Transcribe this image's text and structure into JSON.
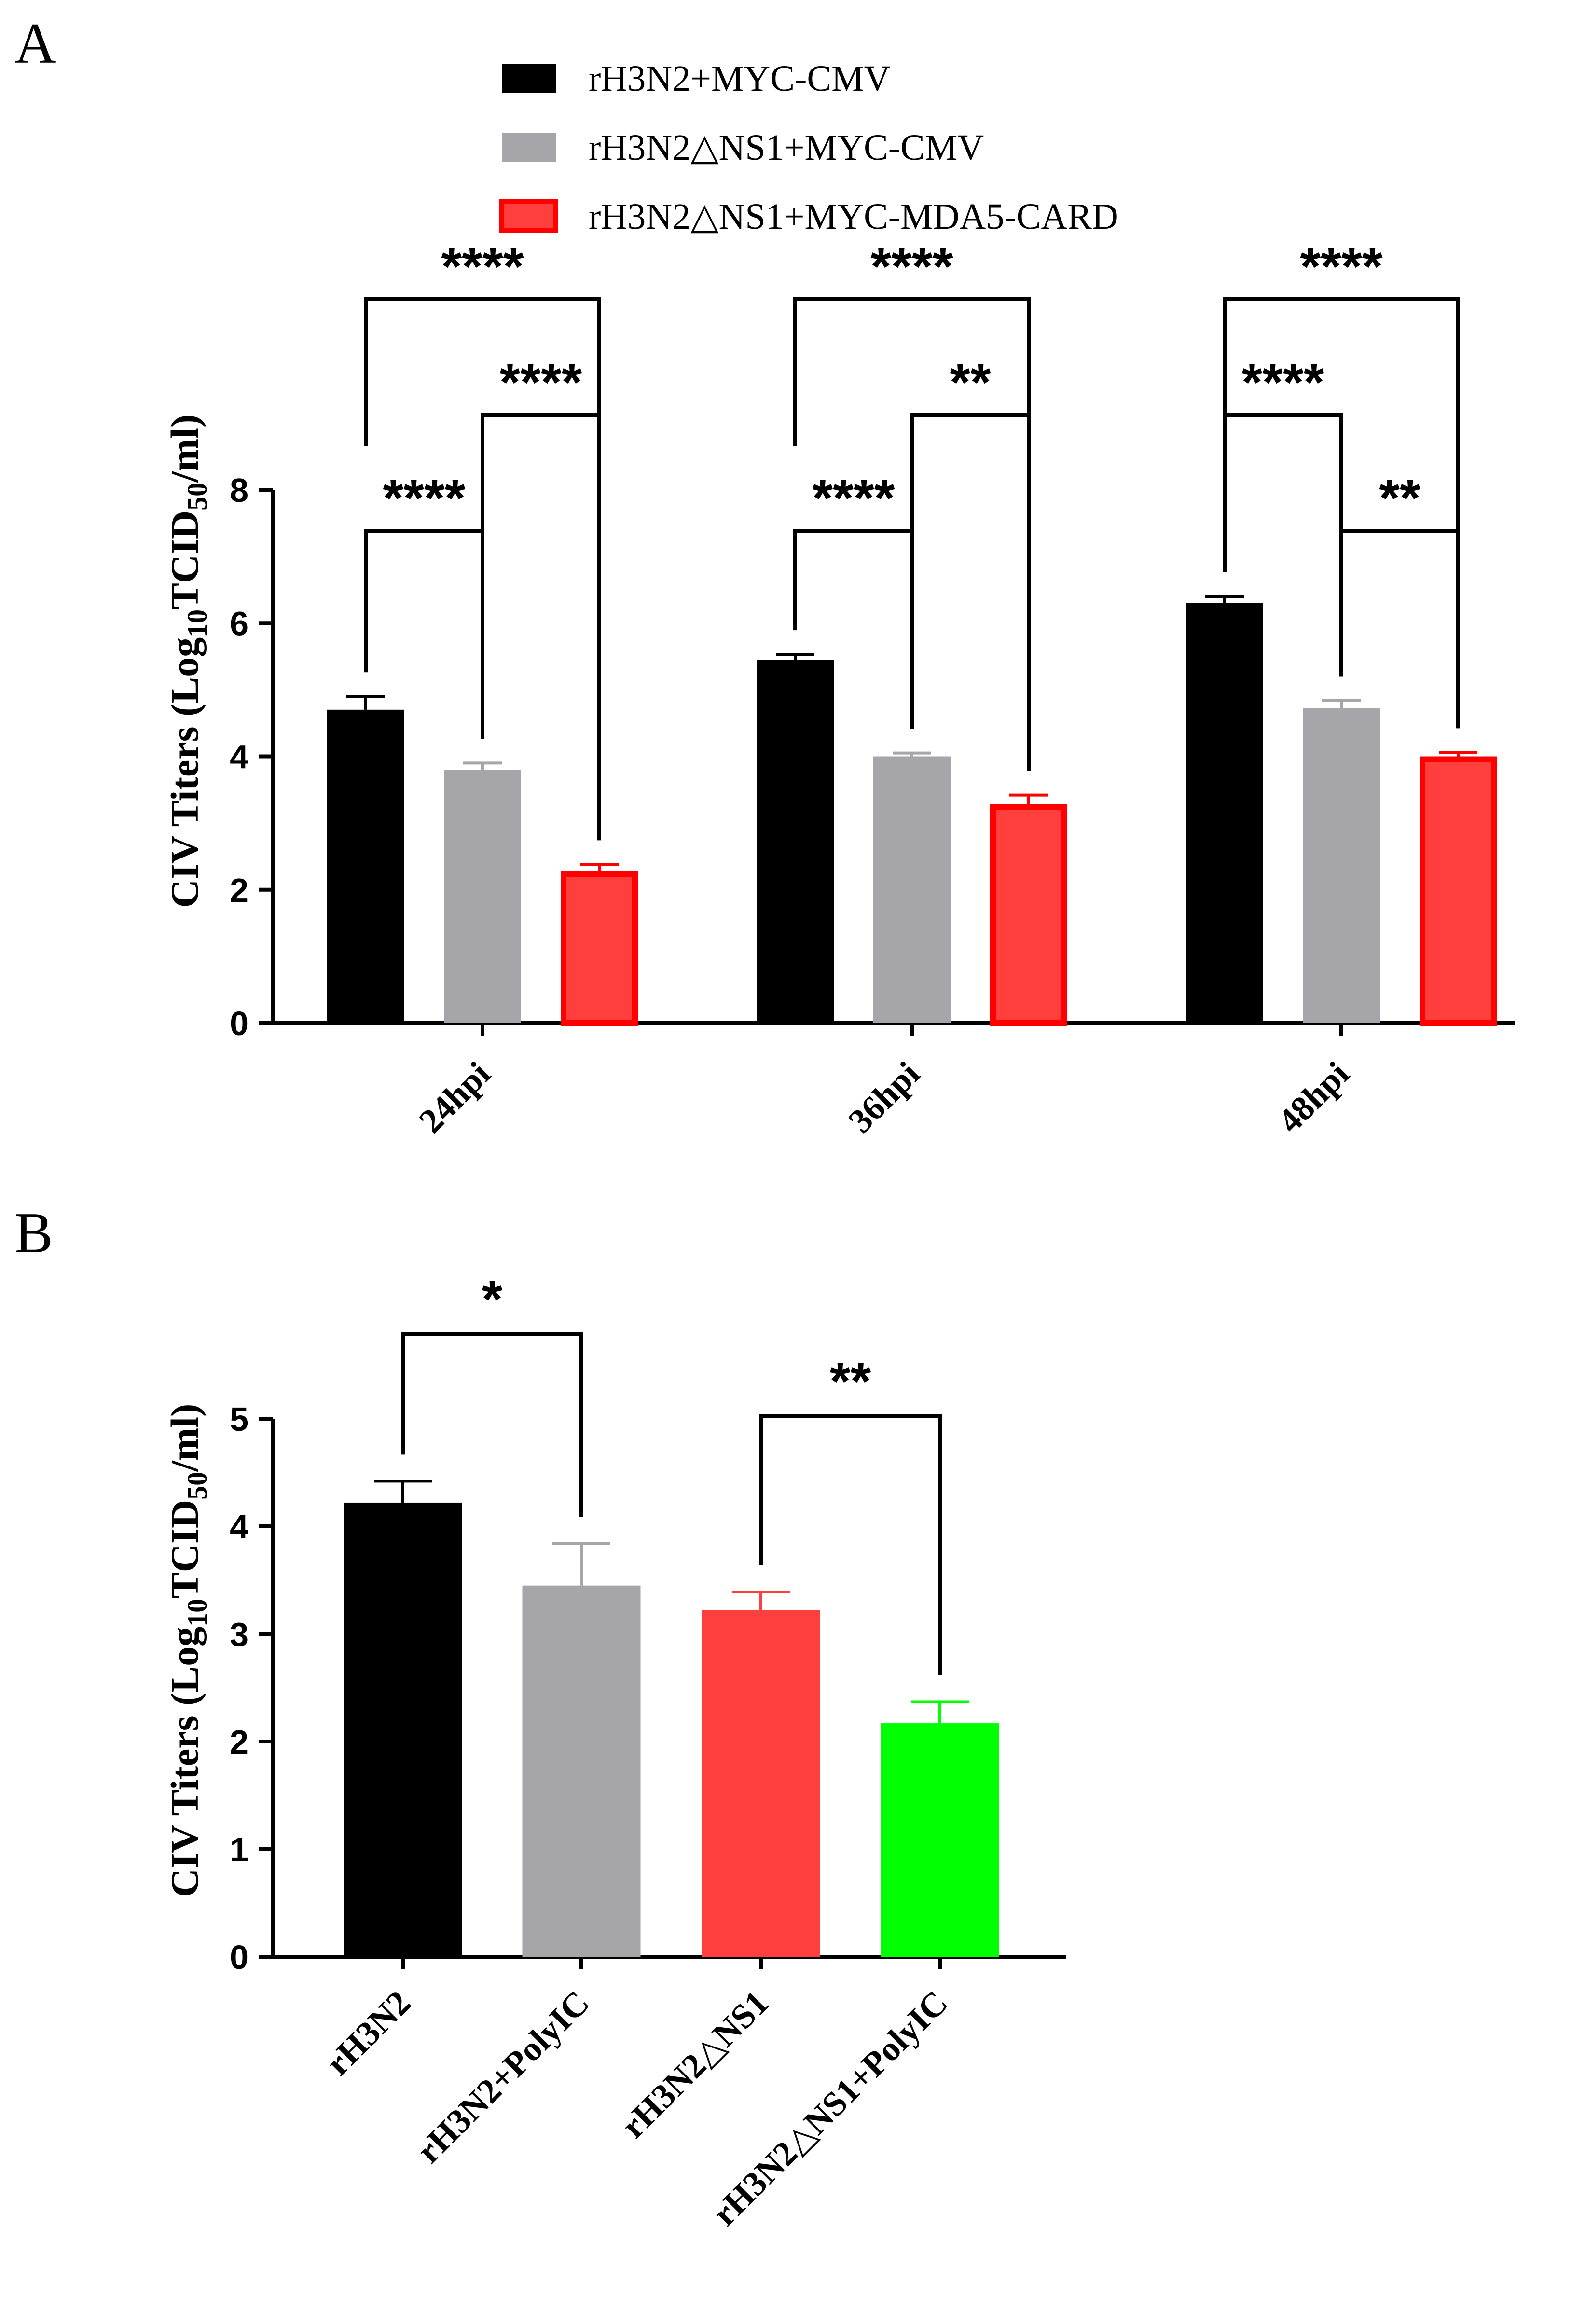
{
  "chart_data": [
    {
      "panel": "A",
      "type": "bar",
      "title": "",
      "ylabel": "CIV Titers (Log10TCID50/ml)",
      "ylabel_parts": {
        "pre": "CIV Titers (Log",
        "sub1": "10",
        "mid": "TCID",
        "sub2": "50",
        "post": "/ml)"
      },
      "xlabel": "",
      "ylim": [
        0,
        8
      ],
      "yticks": [
        0,
        2,
        4,
        6,
        8
      ],
      "categories": [
        "24hpi",
        "36hpi",
        "48hpi"
      ],
      "series": [
        {
          "name": "rH3N2+MYC-CMV",
          "color": "#000000",
          "values": [
            4.7,
            5.45,
            6.3
          ],
          "errors": [
            0.2,
            0.08,
            0.1
          ]
        },
        {
          "name": "rH3N2△NS1+MYC-CMV",
          "color": "#a6a6aa",
          "values": [
            3.8,
            4.0,
            4.72
          ],
          "errors": [
            0.1,
            0.05,
            0.12
          ]
        },
        {
          "name": "rH3N2△NS1+MYC-MDA5-CARD",
          "color": "#ff3e3e",
          "edge_color": "#ff0000",
          "values": [
            2.28,
            3.28,
            4.0
          ],
          "errors": [
            0.1,
            0.14,
            0.06
          ]
        }
      ],
      "significance": [
        {
          "group": 0,
          "from": 0,
          "to": 1,
          "label": "****",
          "level": 0
        },
        {
          "group": 0,
          "from": 1,
          "to": 2,
          "label": "****",
          "level": 1
        },
        {
          "group": 0,
          "from": 0,
          "to": 2,
          "label": "****",
          "level": 2
        },
        {
          "group": 1,
          "from": 0,
          "to": 1,
          "label": "****",
          "level": 0
        },
        {
          "group": 1,
          "from": 1,
          "to": 2,
          "label": "**",
          "level": 1
        },
        {
          "group": 1,
          "from": 0,
          "to": 2,
          "label": "****",
          "level": 2
        },
        {
          "group": 2,
          "from": 1,
          "to": 2,
          "label": "**",
          "level": 0
        },
        {
          "group": 2,
          "from": 0,
          "to": 1,
          "label": "****",
          "level": 1
        },
        {
          "group": 2,
          "from": 0,
          "to": 2,
          "label": "****",
          "level": 2
        }
      ],
      "legend_position": "top-center"
    },
    {
      "panel": "B",
      "type": "bar",
      "title": "",
      "ylabel": "CIV Titers (Log10TCID50/ml)",
      "ylabel_parts": {
        "pre": "CIV Titers (Log",
        "sub1": "10",
        "mid": "TCID",
        "sub2": "50",
        "post": "/ml)"
      },
      "xlabel": "",
      "ylim": [
        0,
        5
      ],
      "yticks": [
        0,
        1,
        2,
        3,
        4,
        5
      ],
      "categories": [
        "rH3N2",
        "rH3N2+PolyIC",
        "rH3N2△NS1",
        "rH3N2△NS1+PolyIC"
      ],
      "values": [
        4.22,
        3.45,
        3.22,
        2.17
      ],
      "errors": [
        0.2,
        0.39,
        0.17,
        0.2
      ],
      "colors": [
        "#000000",
        "#a6a6aa",
        "#ff3e3e",
        "#00ff00"
      ],
      "significance": [
        {
          "from": 0,
          "to": 1,
          "label": "*"
        },
        {
          "from": 2,
          "to": 3,
          "label": "**"
        }
      ]
    }
  ]
}
